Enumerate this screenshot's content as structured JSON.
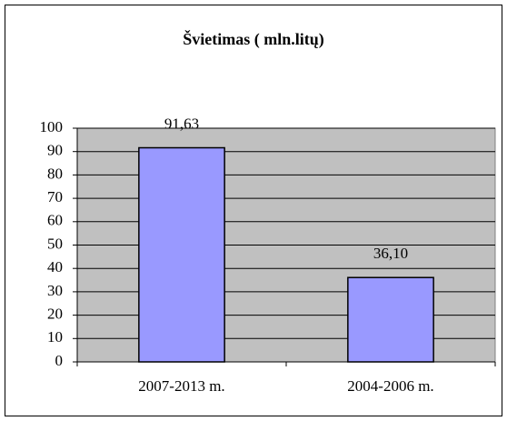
{
  "chart_data": {
    "type": "bar",
    "title": "Švietimas ( mln.litų)",
    "categories": [
      "2007-2013 m.",
      "2004-2006 m."
    ],
    "values": [
      91.63,
      36.1
    ],
    "value_labels": [
      "91,63",
      "36,10"
    ],
    "color": "#9999ff",
    "plot_background": "#c0c0c0",
    "ylim": [
      0,
      100
    ],
    "yticks": [
      0,
      10,
      20,
      30,
      40,
      50,
      60,
      70,
      80,
      90,
      100
    ],
    "grid": true
  }
}
